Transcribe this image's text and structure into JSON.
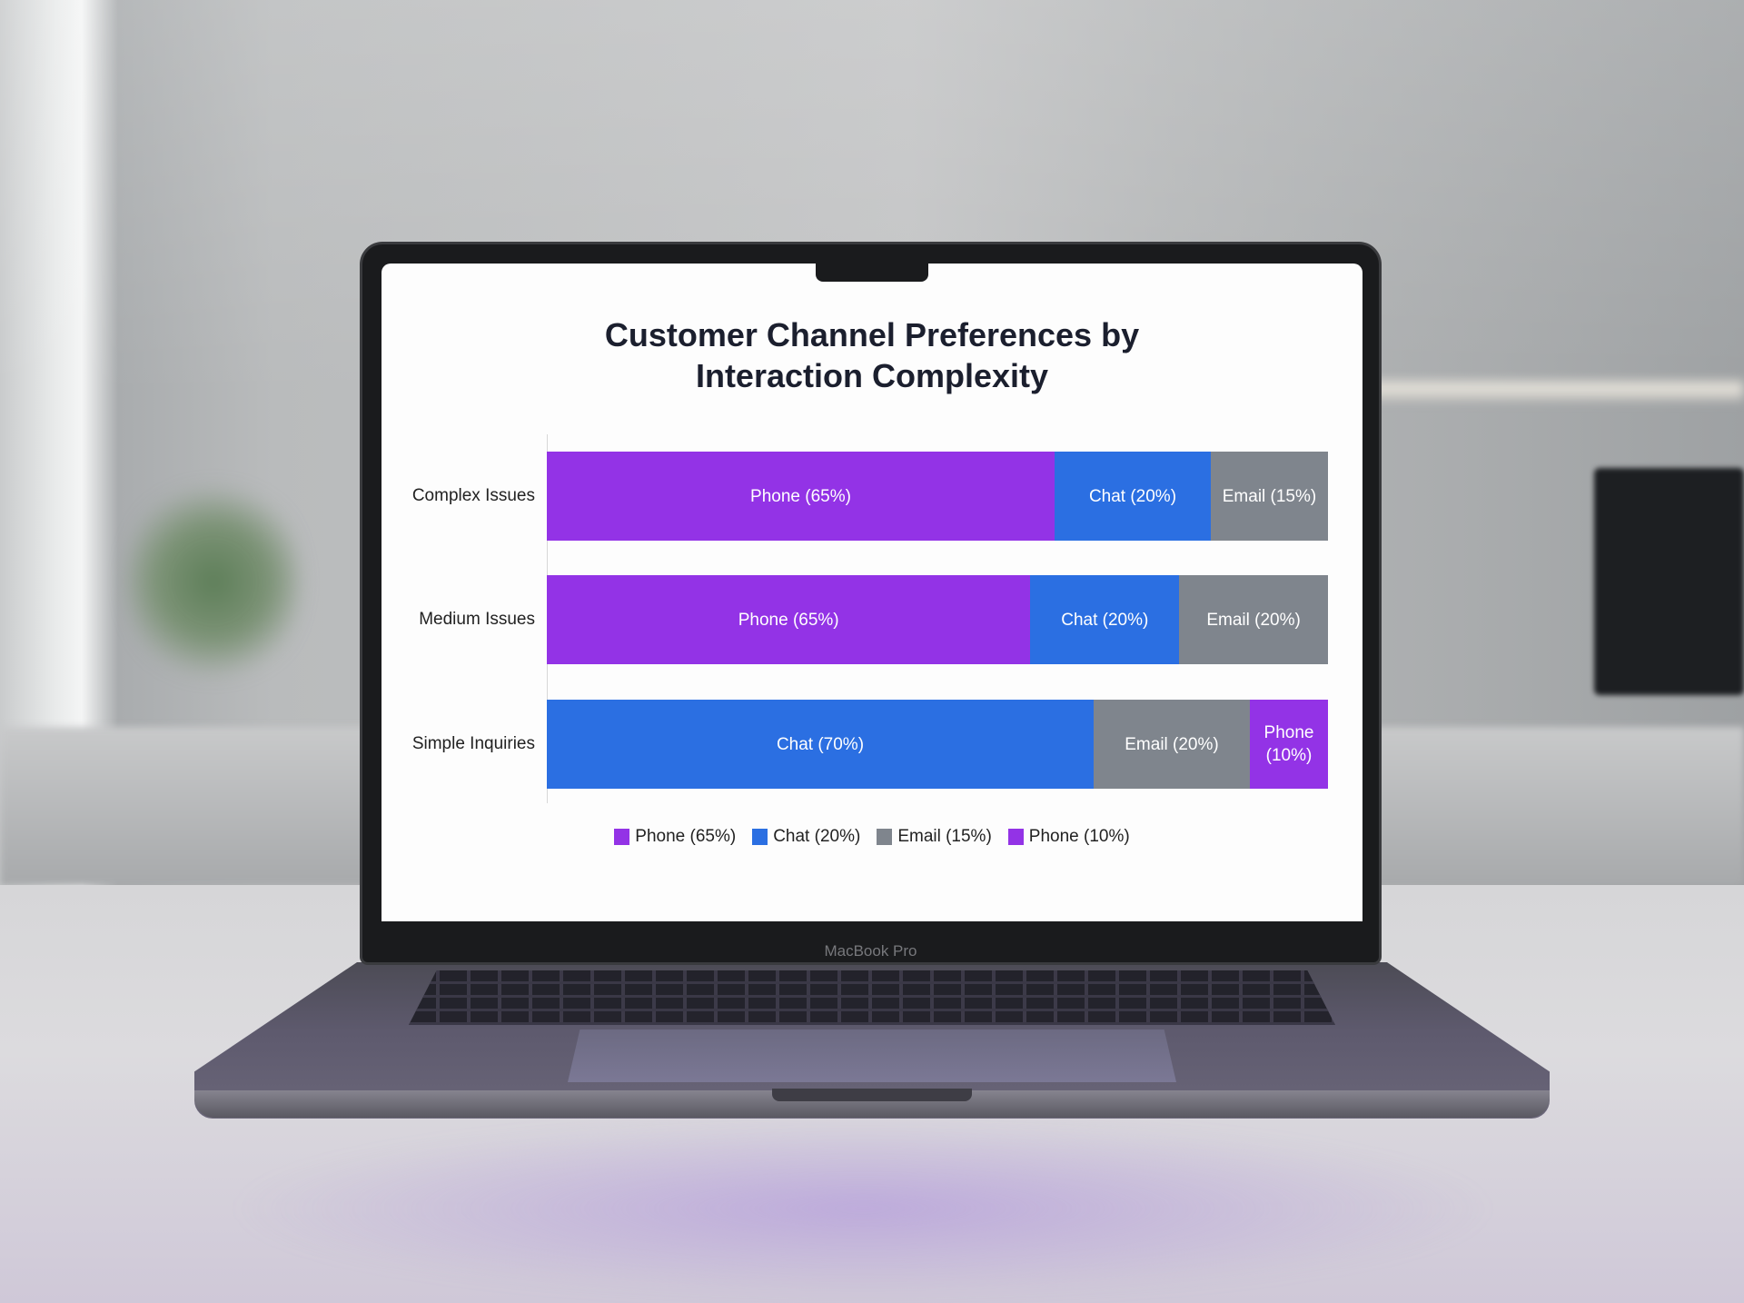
{
  "chart_data": {
    "type": "bar",
    "orientation": "horizontal",
    "stacked": true,
    "title": "Customer Channel Preferences by Interaction Complexity",
    "title_lines": [
      "Customer Channel Preferences by",
      "Interaction Complexity"
    ],
    "categories": [
      "Complex Issues",
      "Medium Issues",
      "Simple Inquiries"
    ],
    "bars": [
      {
        "category": "Complex Issues",
        "segments": [
          {
            "channel": "Phone",
            "value": 65,
            "label": "Phone (65%)",
            "color": "#9333e6"
          },
          {
            "channel": "Chat",
            "value": 20,
            "label": "Chat (20%)",
            "color": "#2b6fe2"
          },
          {
            "channel": "Email",
            "value": 15,
            "label": "Email (15%)",
            "color": "#7f858d"
          }
        ]
      },
      {
        "category": "Medium Issues",
        "segments": [
          {
            "channel": "Phone",
            "value": 65,
            "label": "Phone (65%)",
            "color": "#9333e6"
          },
          {
            "channel": "Chat",
            "value": 20,
            "label": "Chat (20%)",
            "color": "#2b6fe2"
          },
          {
            "channel": "Email",
            "value": 20,
            "label": "Email (20%)",
            "color": "#7f858d"
          }
        ]
      },
      {
        "category": "Simple Inquiries",
        "segments": [
          {
            "channel": "Chat",
            "value": 70,
            "label": "Chat (70%)",
            "color": "#2b6fe2"
          },
          {
            "channel": "Email",
            "value": 20,
            "label": "Email (20%)",
            "color": "#7f858d"
          },
          {
            "channel": "Phone",
            "value": 10,
            "label": "Phone (10%)",
            "color": "#9333e6"
          }
        ]
      }
    ],
    "legend": {
      "position": "bottom",
      "items": [
        {
          "label": "Phone (65%)",
          "color": "#9333e6"
        },
        {
          "label": "Chat (20%)",
          "color": "#2b6fe2"
        },
        {
          "label": "Email (15%)",
          "color": "#7f858d"
        },
        {
          "label": "Phone (10%)",
          "color": "#9333e6"
        }
      ]
    },
    "grid": false
  },
  "device": {
    "brand_label": "MacBook Pro"
  }
}
